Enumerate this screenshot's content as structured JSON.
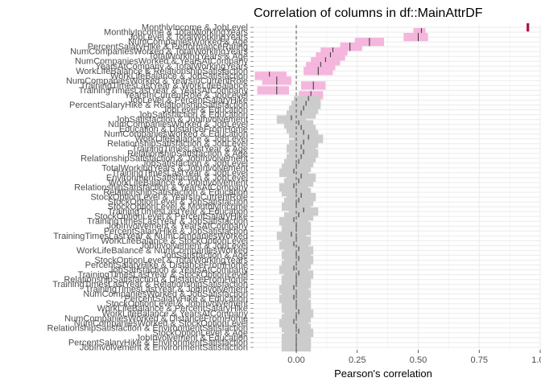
{
  "chart_data": {
    "type": "bar",
    "title": "Correlation of columns in df::MainAttrDF",
    "xlabel": "Pearson's correlation",
    "ylabel": "",
    "xlim": [
      -0.175,
      1.0
    ],
    "x_ticks": [
      "0.00",
      "0.25",
      "0.50",
      "0.75",
      "1.00"
    ],
    "x_tick_values": [
      0,
      0.25,
      0.5,
      0.75,
      1.0
    ],
    "zero_line": "dashed",
    "grid": true,
    "colors": {
      "significant": "#f4b6dc",
      "nonsignificant": "#cccccc",
      "estimate": "#333333",
      "strong_positive": "#e0115f",
      "panel_grid": "#ebebeb"
    },
    "series": [
      {
        "name": "",
        "values": []
      }
    ],
    "rows": [
      {
        "label": "MonthlyIncome & JobLevel",
        "estimate": 0.95,
        "low": 0.944,
        "high": 0.955,
        "sig": true
      },
      {
        "label": "MonthlyIncome & TotalWorkingYears",
        "estimate": 0.513,
        "low": 0.48,
        "high": 0.53,
        "sig": true
      },
      {
        "label": "JobLevel & TotalWorkingYears",
        "estimate": 0.5,
        "low": 0.44,
        "high": 0.54,
        "sig": true
      },
      {
        "label": "NumCompaniesWorked & Age",
        "estimate": 0.3,
        "low": 0.24,
        "high": 0.36,
        "sig": true
      },
      {
        "label": "PercentSalaryHike & PerformanceRating",
        "estimate": 0.22,
        "low": 0.18,
        "high": 0.27,
        "sig": true
      },
      {
        "label": "NumCompaniesWorked & TotalWorkingYears",
        "estimate": 0.15,
        "low": 0.1,
        "high": 0.21,
        "sig": true
      },
      {
        "label": "TotalWorkingYears & Age",
        "estimate": 0.14,
        "low": 0.08,
        "high": 0.2,
        "sig": true
      },
      {
        "label": "NumCompaniesWorked & YearsAtCompany",
        "estimate": 0.12,
        "low": 0.06,
        "high": 0.18,
        "sig": true
      },
      {
        "label": "YearsAtCompany & TotalWorkingYears",
        "estimate": 0.1,
        "low": 0.04,
        "high": 0.16,
        "sig": true
      },
      {
        "label": "WorkLifeBalance & RelationshipSatisfaction",
        "estimate": 0.09,
        "low": 0.03,
        "high": 0.15,
        "sig": true
      },
      {
        "label": "WorkLifeBalance & JobSatisfaction",
        "estimate": -0.11,
        "low": -0.17,
        "high": -0.04,
        "sig": true
      },
      {
        "label": "NumCompaniesWorked & YearsInCurrentRole",
        "estimate": -0.08,
        "low": -0.14,
        "high": -0.02,
        "sig": true
      },
      {
        "label": "TrainingTimesLastYear & WorkLifeBalance",
        "estimate": 0.07,
        "low": 0.02,
        "high": 0.12,
        "sig": true
      },
      {
        "label": "TrainingTimesLastYear & YearsAtCompany",
        "estimate": -0.08,
        "low": -0.16,
        "high": -0.03,
        "sig": true
      },
      {
        "label": "YearsInCurrentRole & JobLevel",
        "estimate": 0.06,
        "low": 0.01,
        "high": 0.11,
        "sig": true
      },
      {
        "label": "JobLevel & PercentSalaryHike",
        "estimate": 0.05,
        "low": -0.01,
        "high": 0.1,
        "sig": false
      },
      {
        "label": "PercentSalaryHike & RelationshipSatisfaction",
        "estimate": 0.04,
        "low": -0.02,
        "high": 0.1,
        "sig": false
      },
      {
        "label": "JobLevel & Education",
        "estimate": 0.03,
        "low": -0.03,
        "high": 0.09,
        "sig": false
      },
      {
        "label": "JobSatisfaction & Education",
        "estimate": 0.02,
        "low": -0.04,
        "high": 0.08,
        "sig": false
      },
      {
        "label": "JobSatisfaction & JobInvolvement",
        "estimate": -0.02,
        "low": -0.08,
        "high": 0.04,
        "sig": false
      },
      {
        "label": "NumCompaniesWorked & JobLevel",
        "estimate": 0.01,
        "low": -0.05,
        "high": 0.07,
        "sig": false
      },
      {
        "label": "Education & DistanceFromHome",
        "estimate": 0.02,
        "low": -0.04,
        "high": 0.08,
        "sig": false
      },
      {
        "label": "NumCompaniesWorked & Education",
        "estimate": 0.03,
        "low": -0.03,
        "high": 0.09,
        "sig": false
      },
      {
        "label": "WorkLifeBalance & JobLevel",
        "estimate": 0.05,
        "low": -0.01,
        "high": 0.11,
        "sig": false
      },
      {
        "label": "RelationshipSatisfaction & JobLevel",
        "estimate": 0.03,
        "low": -0.03,
        "high": 0.09,
        "sig": false
      },
      {
        "label": "TrainingTimesLastYear & Age",
        "estimate": 0.02,
        "low": -0.04,
        "high": 0.08,
        "sig": false
      },
      {
        "label": "RelationshipSatisfaction & Age",
        "estimate": 0.03,
        "low": -0.03,
        "high": 0.09,
        "sig": false
      },
      {
        "label": "RelationshipSatisfaction & JobInvolvement",
        "estimate": 0.02,
        "low": -0.04,
        "high": 0.08,
        "sig": false
      },
      {
        "label": "JobSatisfaction & JobLevel",
        "estimate": 0.01,
        "low": -0.05,
        "high": 0.07,
        "sig": false
      },
      {
        "label": "TotalWorkingYears & JobInvolvement",
        "estimate": 0.0,
        "low": -0.06,
        "high": 0.06,
        "sig": false
      },
      {
        "label": "TrainingTimesLastYear & JobLevel",
        "estimate": -0.01,
        "low": -0.07,
        "high": 0.05,
        "sig": false
      },
      {
        "label": "EnvironmentSatisfaction & JobLevel",
        "estimate": 0.02,
        "low": -0.04,
        "high": 0.08,
        "sig": false
      },
      {
        "label": "WorkLifeBalance & JobInvolvement",
        "estimate": 0.01,
        "low": -0.05,
        "high": 0.07,
        "sig": false
      },
      {
        "label": "RelationshipSatisfaction & YearsAtCompany",
        "estimate": -0.01,
        "low": -0.07,
        "high": 0.05,
        "sig": false
      },
      {
        "label": "RelationshipSatisfaction & Education",
        "estimate": 0.0,
        "low": -0.06,
        "high": 0.06,
        "sig": false
      },
      {
        "label": "StockOptionLevel & YearsInCurrentRole",
        "estimate": 0.02,
        "low": -0.04,
        "high": 0.08,
        "sig": false
      },
      {
        "label": "StockOptionLevel & JobSatisfaction",
        "estimate": 0.01,
        "low": -0.05,
        "high": 0.07,
        "sig": false
      },
      {
        "label": "StockOptionLevel & MonthlyIncome",
        "estimate": 0.0,
        "low": -0.06,
        "high": 0.06,
        "sig": false
      },
      {
        "label": "TrainingTimesLastYear & Education",
        "estimate": 0.03,
        "low": -0.03,
        "high": 0.09,
        "sig": false
      },
      {
        "label": "StockOptionLevel & PercentSalaryHike",
        "estimate": 0.01,
        "low": -0.05,
        "high": 0.07,
        "sig": false
      },
      {
        "label": "TrainingTimesLastYear & JobSatisfaction",
        "estimate": -0.01,
        "low": -0.07,
        "high": 0.05,
        "sig": false
      },
      {
        "label": "JobInvolvement & YearsAtCompany",
        "estimate": 0.0,
        "low": -0.06,
        "high": 0.06,
        "sig": false
      },
      {
        "label": "PercentSalaryHike & JobSatisfaction",
        "estimate": 0.0,
        "low": -0.06,
        "high": 0.06,
        "sig": false
      },
      {
        "label": "TrainingTimesLastYear & NumCompaniesWorked",
        "estimate": -0.02,
        "low": -0.08,
        "high": 0.04,
        "sig": false
      },
      {
        "label": "WorkLifeBalance & StockOptionLevel",
        "estimate": 0.0,
        "low": -0.06,
        "high": 0.06,
        "sig": false
      },
      {
        "label": "JobInvolvement & JobLevel",
        "estimate": -0.01,
        "low": -0.07,
        "high": 0.05,
        "sig": false
      },
      {
        "label": "WorkLifeBalance & NumCompaniesWorked",
        "estimate": 0.01,
        "low": -0.05,
        "high": 0.07,
        "sig": false
      },
      {
        "label": "JobSatisfaction & Age",
        "estimate": 0.0,
        "low": -0.06,
        "high": 0.06,
        "sig": false
      },
      {
        "label": "StockOptionLevel & TotalWorkingYears",
        "estimate": 0.01,
        "low": -0.05,
        "high": 0.07,
        "sig": false
      },
      {
        "label": "PercentSalaryHike & DistanceFromHome",
        "estimate": 0.0,
        "low": -0.06,
        "high": 0.06,
        "sig": false
      },
      {
        "label": "JobSatisfaction & YearsAtCompany",
        "estimate": -0.01,
        "low": -0.07,
        "high": 0.05,
        "sig": false
      },
      {
        "label": "TrainingTimesLastYear & StockOptionLevel",
        "estimate": 0.01,
        "low": -0.05,
        "high": 0.07,
        "sig": false
      },
      {
        "label": "RelationshipSatisfaction & DistanceFromHome",
        "estimate": 0.0,
        "low": -0.06,
        "high": 0.06,
        "sig": false
      },
      {
        "label": "TrainingTimesLastYear & RelationshipSatisfaction",
        "estimate": 0.0,
        "low": -0.06,
        "high": 0.06,
        "sig": false
      },
      {
        "label": "TrainingTimesLastYear & JobInvolvement",
        "estimate": -0.01,
        "low": -0.07,
        "high": 0.05,
        "sig": false
      },
      {
        "label": "NumCompaniesWorked & JobSatisfaction",
        "estimate": 0.0,
        "low": -0.06,
        "high": 0.06,
        "sig": false
      },
      {
        "label": "PercentSalaryHike & Education",
        "estimate": -0.01,
        "low": -0.07,
        "high": 0.05,
        "sig": false
      },
      {
        "label": "StockOptionLevel & JobInvolvement",
        "estimate": 0.0,
        "low": -0.06,
        "high": 0.06,
        "sig": false
      },
      {
        "label": "WorkLifeBalance & PercentSalaryHike",
        "estimate": 0.0,
        "low": -0.06,
        "high": 0.06,
        "sig": false
      },
      {
        "label": "WorkLifeBalance & YearsAtCompany",
        "estimate": 0.01,
        "low": -0.05,
        "high": 0.07,
        "sig": false
      },
      {
        "label": "NumCompaniesWorked & DistanceFromHome",
        "estimate": 0.0,
        "low": -0.06,
        "high": 0.06,
        "sig": false
      },
      {
        "label": "NumCompaniesWorked & StockOptionLevel",
        "estimate": -0.01,
        "low": -0.07,
        "high": 0.05,
        "sig": false
      },
      {
        "label": "RelationshipSatisfaction & EnvironmentSatisfaction",
        "estimate": 0.0,
        "low": -0.06,
        "high": 0.06,
        "sig": false
      },
      {
        "label": "StockOptionLevel & Age",
        "estimate": 0.01,
        "low": -0.05,
        "high": 0.07,
        "sig": false
      },
      {
        "label": "JobInvolvement & Education",
        "estimate": 0.0,
        "low": -0.06,
        "high": 0.06,
        "sig": false
      },
      {
        "label": "PercentSalaryHike & EnvironmentSatisfaction",
        "estimate": 0.0,
        "low": -0.06,
        "high": 0.06,
        "sig": false
      },
      {
        "label": "JobInvolvement & EnvironmentSatisfaction",
        "estimate": 0.0,
        "low": -0.06,
        "high": 0.06,
        "sig": false
      }
    ]
  }
}
